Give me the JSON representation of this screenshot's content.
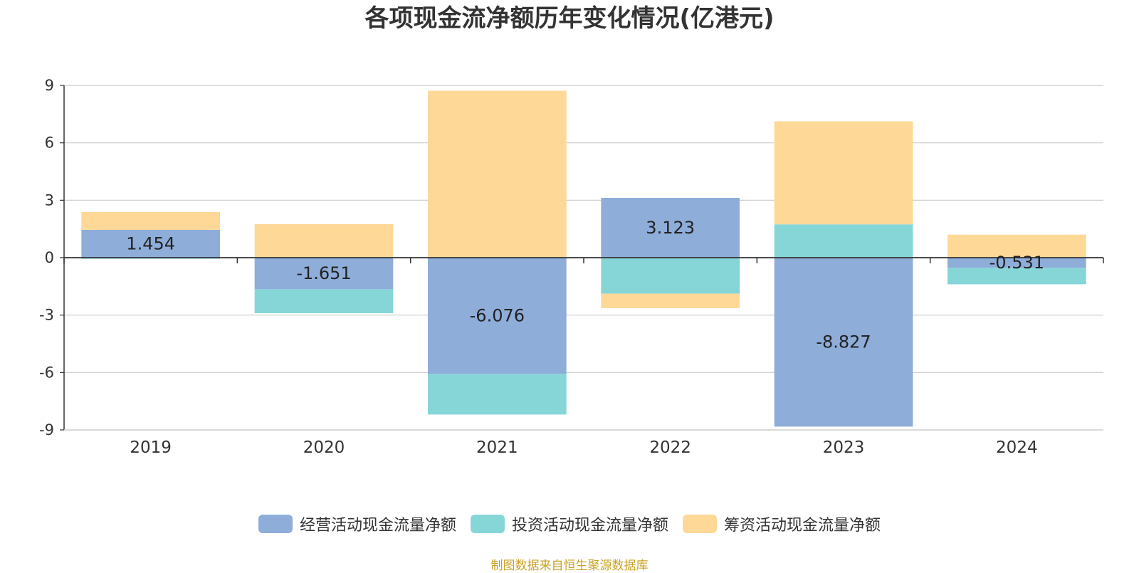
{
  "chart_data": {
    "type": "bar",
    "stacked": true,
    "title": "各项现金流净额历年变化情况(亿港元)",
    "categories": [
      "2019",
      "2020",
      "2021",
      "2022",
      "2023",
      "2024"
    ],
    "ylim": [
      -9,
      9
    ],
    "yticks": [
      9,
      6,
      3,
      0,
      -3,
      -6,
      -9
    ],
    "grid": true,
    "legend_position": "bottom",
    "series": [
      {
        "name": "经营活动现金流量净额",
        "color": "#8eadd9",
        "values": [
          1.454,
          -1.651,
          -6.076,
          3.123,
          -8.827,
          -0.531
        ],
        "show_labels": true
      },
      {
        "name": "投资活动现金流量净额",
        "color": "#86d6d8",
        "values": [
          -0.06,
          -1.25,
          -2.12,
          -1.88,
          1.74,
          -0.86
        ],
        "show_labels": false
      },
      {
        "name": "筹资活动现金流量净额",
        "color": "#fed897",
        "values": [
          0.93,
          1.75,
          8.72,
          -0.76,
          5.38,
          1.2
        ],
        "show_labels": false
      }
    ],
    "data_labels": [
      "1.454",
      "-1.651",
      "-6.076",
      "3.123",
      "-8.827",
      "-0.531"
    ]
  },
  "source_note": "制图数据来自恒生聚源数据库"
}
